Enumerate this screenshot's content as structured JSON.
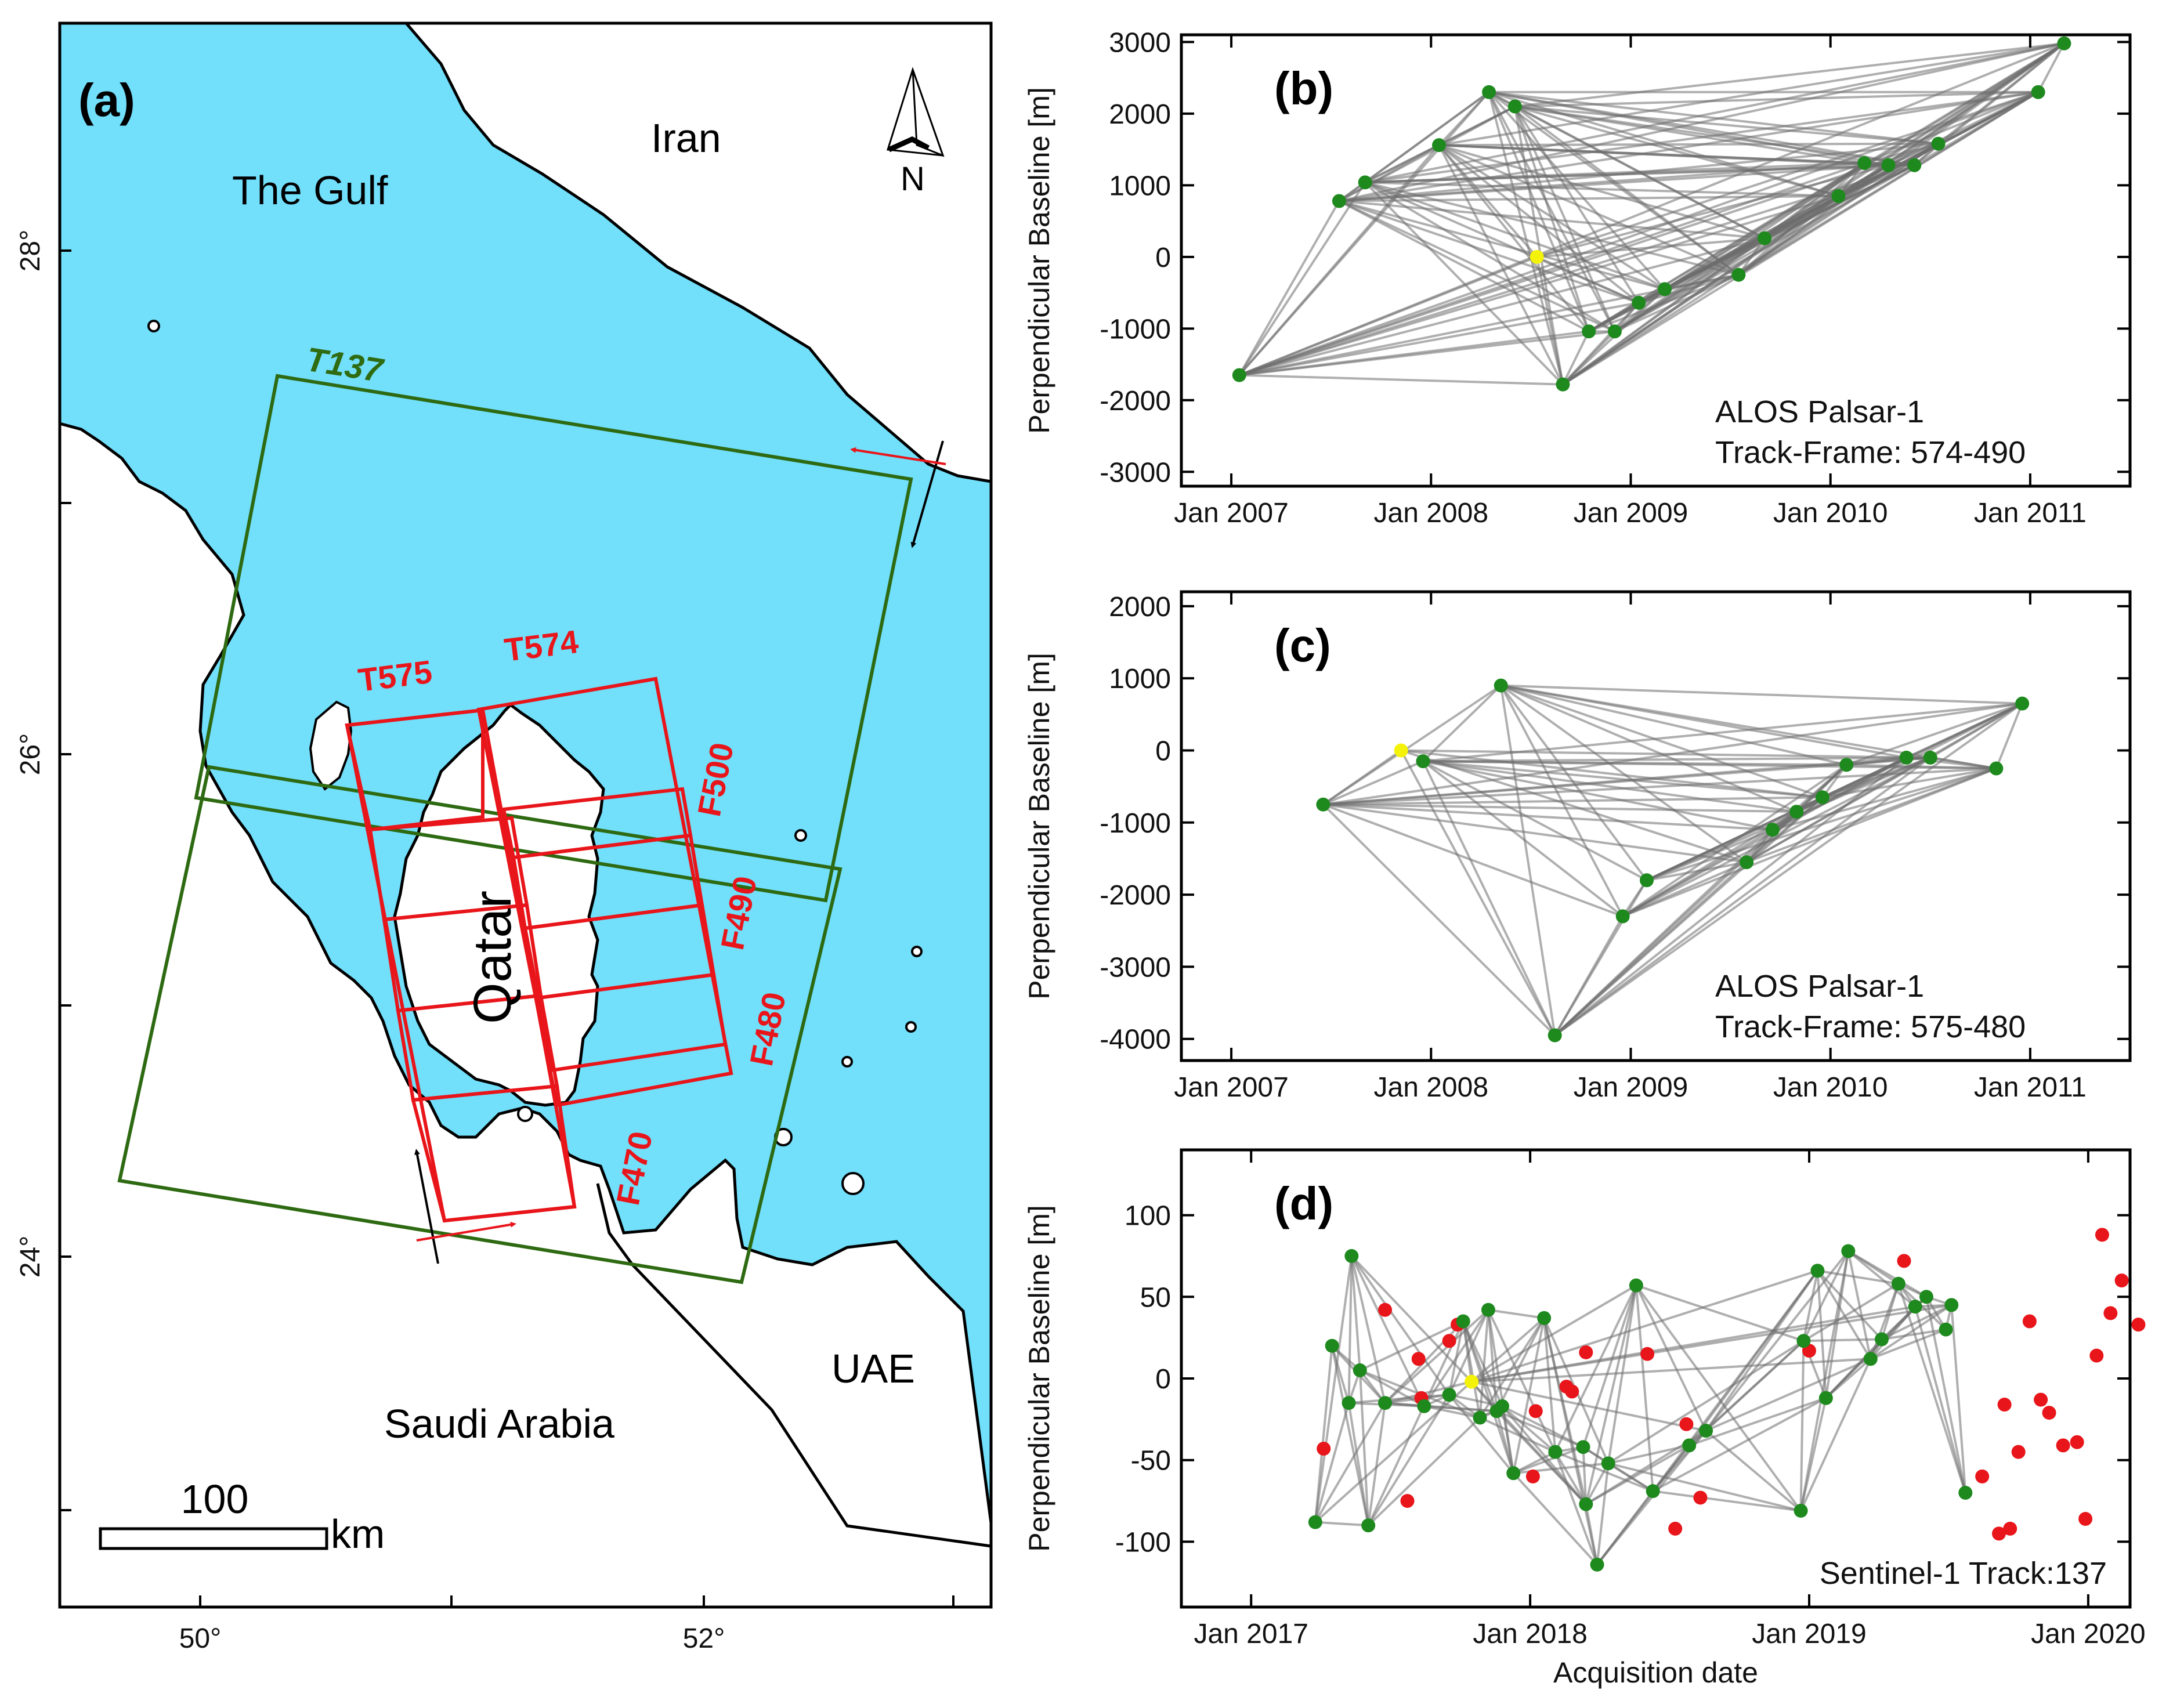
{
  "map": {
    "panel_label": "(a)",
    "lon_ticks": [
      "50°",
      "52°"
    ],
    "lat_ticks": [
      "28°",
      "26°",
      "24°"
    ],
    "places": {
      "gulf": "The Gulf",
      "iran": "Iran",
      "qatar": "Qatar",
      "saudi": "Saudi Arabia",
      "uae": "UAE"
    },
    "north": "N",
    "scale": {
      "value": "100",
      "unit": "km"
    },
    "track_green": "T137",
    "tracks_red": [
      "T575",
      "T574"
    ],
    "frames": [
      "F500",
      "F490",
      "F480",
      "F470"
    ],
    "colors": {
      "sea": "#72dffb",
      "green": "#2e6a12",
      "red": "#e8151a"
    }
  },
  "chart_data": [
    {
      "id": "b",
      "type": "scatter",
      "panel_label": "(b)",
      "ylabel": "Perpendicular Baseline [m]",
      "xlabel": "",
      "xlim": [
        2006.75,
        2011.5
      ],
      "ylim": [
        -3200,
        3100
      ],
      "xticks": [
        2007,
        2008,
        2009,
        2010,
        2011
      ],
      "xtick_labels": [
        "Jan 2007",
        "Jan 2008",
        "Jan 2009",
        "Jan 2010",
        "Jan 2011"
      ],
      "yticks": [
        3000,
        2000,
        1000,
        0,
        -1000,
        -2000,
        -3000
      ],
      "ytick_labels": [
        "3000",
        "2000",
        "1000",
        "0",
        "-1000",
        "-2000",
        "-3000"
      ],
      "annotation": [
        "ALOS Palsar-1",
        "Track-Frame: 574-490"
      ],
      "reference": {
        "x": 2008.53,
        "y": 0
      },
      "points": [
        {
          "x": 2007.04,
          "y": -1650
        },
        {
          "x": 2007.54,
          "y": 780
        },
        {
          "x": 2007.67,
          "y": 1040
        },
        {
          "x": 2008.04,
          "y": 1560
        },
        {
          "x": 2008.29,
          "y": 2300
        },
        {
          "x": 2008.42,
          "y": 2100
        },
        {
          "x": 2008.66,
          "y": -1780
        },
        {
          "x": 2008.79,
          "y": -1040
        },
        {
          "x": 2008.92,
          "y": -1040
        },
        {
          "x": 2009.04,
          "y": -640
        },
        {
          "x": 2009.17,
          "y": -450
        },
        {
          "x": 2009.54,
          "y": -250
        },
        {
          "x": 2009.67,
          "y": 260
        },
        {
          "x": 2010.04,
          "y": 850
        },
        {
          "x": 2010.17,
          "y": 1310
        },
        {
          "x": 2010.29,
          "y": 1280
        },
        {
          "x": 2010.42,
          "y": 1280
        },
        {
          "x": 2010.54,
          "y": 1580
        },
        {
          "x": 2011.04,
          "y": 2300
        },
        {
          "x": 2011.17,
          "y": 2980
        }
      ]
    },
    {
      "id": "c",
      "type": "scatter",
      "panel_label": "(c)",
      "ylabel": "Perpendicular Baseline [m]",
      "xlabel": "",
      "xlim": [
        2006.75,
        2011.5
      ],
      "ylim": [
        -4300,
        2200
      ],
      "xticks": [
        2007,
        2008,
        2009,
        2010,
        2011
      ],
      "xtick_labels": [
        "Jan 2007",
        "Jan 2008",
        "Jan 2009",
        "Jan 2010",
        "Jan 2011"
      ],
      "yticks": [
        2000,
        1000,
        0,
        -1000,
        -2000,
        -3000,
        -4000
      ],
      "ytick_labels": [
        "2000",
        "1000",
        "0",
        "-1000",
        "-2000",
        "-3000",
        "-4000"
      ],
      "annotation": [
        "ALOS Palsar-1",
        "Track-Frame: 575-480"
      ],
      "reference": {
        "x": 2007.85,
        "y": 0
      },
      "points": [
        {
          "x": 2007.46,
          "y": -750
        },
        {
          "x": 2007.96,
          "y": -150
        },
        {
          "x": 2008.35,
          "y": 900
        },
        {
          "x": 2008.62,
          "y": -3950
        },
        {
          "x": 2008.96,
          "y": -2300
        },
        {
          "x": 2009.08,
          "y": -1800
        },
        {
          "x": 2009.58,
          "y": -1550
        },
        {
          "x": 2009.71,
          "y": -1100
        },
        {
          "x": 2009.83,
          "y": -850
        },
        {
          "x": 2009.96,
          "y": -650
        },
        {
          "x": 2010.08,
          "y": -200
        },
        {
          "x": 2010.38,
          "y": -100
        },
        {
          "x": 2010.5,
          "y": -100
        },
        {
          "x": 2010.83,
          "y": -250
        },
        {
          "x": 2010.96,
          "y": 650
        }
      ]
    },
    {
      "id": "d",
      "type": "scatter",
      "panel_label": "(d)",
      "ylabel": "Perpendicular Baseline [m]",
      "xlabel": "Acquisition date",
      "xlim": [
        2016.75,
        2020.15
      ],
      "ylim": [
        -140,
        140
      ],
      "xticks": [
        2017,
        2018,
        2019,
        2020
      ],
      "xtick_labels": [
        "Jan 2017",
        "Jan 2018",
        "Jan 2019",
        "Jan 2020"
      ],
      "yticks": [
        100,
        50,
        0,
        -50,
        -100
      ],
      "ytick_labels": [
        "100",
        "50",
        "0",
        "-50",
        "-100"
      ],
      "annotation": [
        "Sentinel-1 Track:137"
      ],
      "reference": {
        "x": 2017.79,
        "y": -2
      },
      "points": [
        {
          "x": 2017.23,
          "y": -88
        },
        {
          "x": 2017.29,
          "y": 20
        },
        {
          "x": 2017.35,
          "y": -15
        },
        {
          "x": 2017.36,
          "y": 75
        },
        {
          "x": 2017.39,
          "y": 5
        },
        {
          "x": 2017.42,
          "y": -90
        },
        {
          "x": 2017.48,
          "y": -15
        },
        {
          "x": 2017.62,
          "y": -17
        },
        {
          "x": 2017.71,
          "y": -10
        },
        {
          "x": 2017.76,
          "y": 35
        },
        {
          "x": 2017.82,
          "y": -24
        },
        {
          "x": 2017.85,
          "y": 42
        },
        {
          "x": 2017.88,
          "y": -20
        },
        {
          "x": 2017.9,
          "y": -17
        },
        {
          "x": 2017.94,
          "y": -58
        },
        {
          "x": 2018.05,
          "y": 37
        },
        {
          "x": 2018.09,
          "y": -45
        },
        {
          "x": 2018.19,
          "y": -42
        },
        {
          "x": 2018.2,
          "y": -77
        },
        {
          "x": 2018.24,
          "y": -114
        },
        {
          "x": 2018.28,
          "y": -52
        },
        {
          "x": 2018.38,
          "y": 57
        },
        {
          "x": 2018.44,
          "y": -69
        },
        {
          "x": 2018.57,
          "y": -41
        },
        {
          "x": 2018.63,
          "y": -32
        },
        {
          "x": 2018.97,
          "y": -81
        },
        {
          "x": 2018.98,
          "y": 23
        },
        {
          "x": 2019.03,
          "y": 66
        },
        {
          "x": 2019.06,
          "y": -12
        },
        {
          "x": 2019.14,
          "y": 78
        },
        {
          "x": 2019.22,
          "y": 12
        },
        {
          "x": 2019.26,
          "y": 24
        },
        {
          "x": 2019.32,
          "y": 58
        },
        {
          "x": 2019.38,
          "y": 44
        },
        {
          "x": 2019.42,
          "y": 50
        },
        {
          "x": 2019.49,
          "y": 30
        },
        {
          "x": 2019.51,
          "y": 45
        },
        {
          "x": 2019.56,
          "y": -70
        }
      ],
      "rejected": [
        {
          "x": 2017.26,
          "y": -43
        },
        {
          "x": 2017.48,
          "y": 42
        },
        {
          "x": 2017.56,
          "y": -75
        },
        {
          "x": 2017.6,
          "y": 12
        },
        {
          "x": 2017.61,
          "y": -12
        },
        {
          "x": 2017.71,
          "y": 23
        },
        {
          "x": 2017.74,
          "y": 33
        },
        {
          "x": 2018.02,
          "y": -20
        },
        {
          "x": 2018.01,
          "y": -60
        },
        {
          "x": 2018.13,
          "y": -5
        },
        {
          "x": 2018.15,
          "y": -8
        },
        {
          "x": 2018.2,
          "y": 16
        },
        {
          "x": 2018.42,
          "y": 15
        },
        {
          "x": 2018.56,
          "y": -28
        },
        {
          "x": 2018.52,
          "y": -92
        },
        {
          "x": 2018.61,
          "y": -73
        },
        {
          "x": 2019.0,
          "y": 17
        },
        {
          "x": 2019.34,
          "y": 72
        },
        {
          "x": 2019.62,
          "y": -60
        },
        {
          "x": 2019.68,
          "y": -95
        },
        {
          "x": 2019.72,
          "y": -92
        },
        {
          "x": 2019.7,
          "y": -16
        },
        {
          "x": 2019.75,
          "y": -45
        },
        {
          "x": 2019.79,
          "y": 35
        },
        {
          "x": 2019.83,
          "y": -13
        },
        {
          "x": 2019.86,
          "y": -21
        },
        {
          "x": 2019.91,
          "y": -41
        },
        {
          "x": 2019.96,
          "y": -39
        },
        {
          "x": 2019.99,
          "y": -86
        },
        {
          "x": 2020.03,
          "y": 14
        },
        {
          "x": 2020.05,
          "y": 88
        },
        {
          "x": 2020.08,
          "y": 40
        },
        {
          "x": 2020.12,
          "y": 60
        },
        {
          "x": 2020.18,
          "y": 33
        }
      ]
    }
  ]
}
